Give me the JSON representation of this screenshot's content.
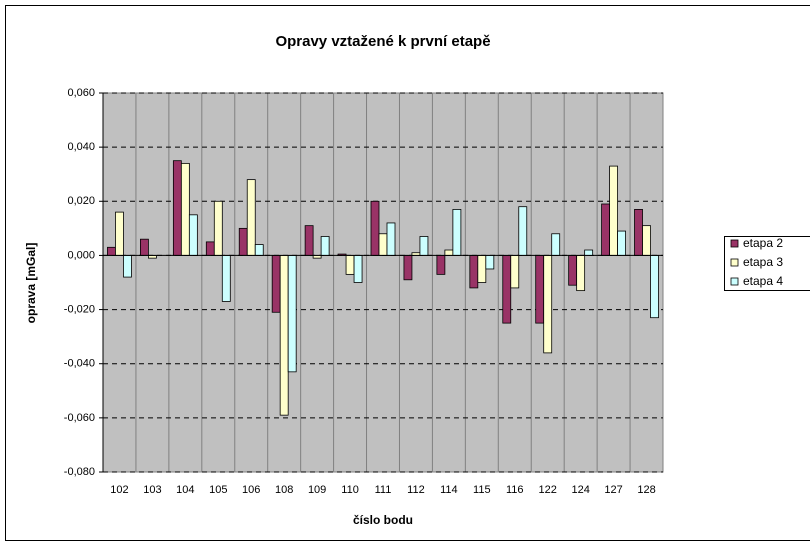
{
  "chart_data": {
    "type": "bar",
    "title": "Opravy vztažené k první etapě",
    "xlabel": "číslo bodu",
    "ylabel": "oprava [mGal]",
    "categories": [
      "102",
      "103",
      "104",
      "105",
      "106",
      "108",
      "109",
      "110",
      "111",
      "112",
      "114",
      "115",
      "116",
      "122",
      "124",
      "127",
      "128"
    ],
    "series": [
      {
        "name": "etapa 2",
        "color": "#993366",
        "values": [
          0.003,
          0.006,
          0.035,
          0.005,
          0.01,
          -0.021,
          0.011,
          0.0005,
          0.02,
          -0.009,
          -0.007,
          -0.012,
          -0.025,
          -0.025,
          -0.011,
          0.019,
          0.017
        ]
      },
      {
        "name": "etapa 3",
        "color": "#ffffcc",
        "values": [
          0.016,
          -0.001,
          0.034,
          0.02,
          0.028,
          -0.059,
          -0.001,
          -0.007,
          0.008,
          0.001,
          0.002,
          -0.01,
          -0.012,
          -0.036,
          -0.013,
          0.033,
          0.011
        ]
      },
      {
        "name": "etapa 4",
        "color": "#ccffff",
        "values": [
          -0.008,
          0.0,
          0.015,
          -0.017,
          0.004,
          -0.043,
          0.007,
          -0.01,
          0.012,
          0.007,
          0.017,
          -0.005,
          0.018,
          0.008,
          0.002,
          0.009,
          -0.023
        ]
      }
    ],
    "ylim": [
      -0.08,
      0.06
    ],
    "yticks": [
      {
        "value": -0.08,
        "label": "-0,080"
      },
      {
        "value": -0.06,
        "label": "-0,060"
      },
      {
        "value": -0.04,
        "label": "-0,040"
      },
      {
        "value": -0.02,
        "label": "-0,020"
      },
      {
        "value": 0,
        "label": "0,000"
      },
      {
        "value": 0.02,
        "label": "0,020"
      },
      {
        "value": 0.04,
        "label": "0,040"
      },
      {
        "value": 0.06,
        "label": "0,060"
      }
    ],
    "grid": true,
    "plot_background": "#c0c0c0",
    "legend": "right"
  }
}
